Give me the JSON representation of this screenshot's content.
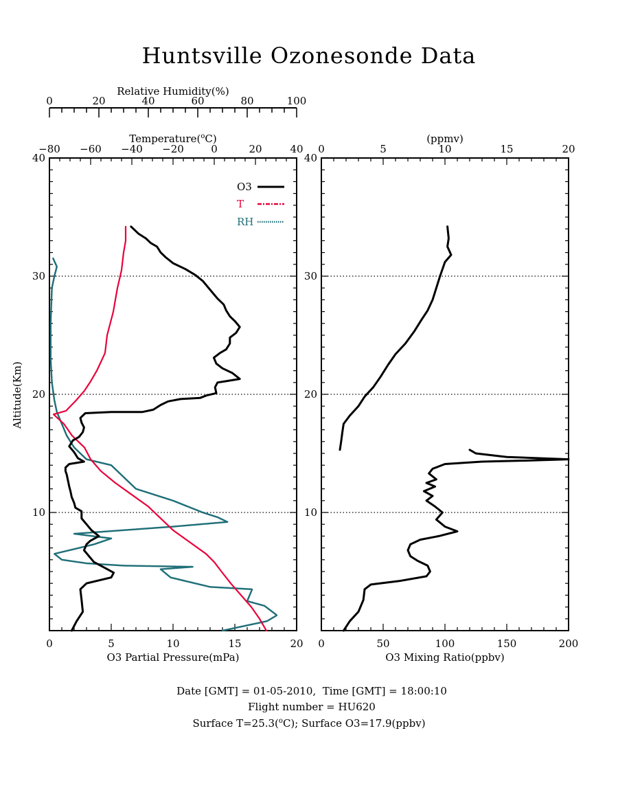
{
  "title": "Huntsville Ozonesonde Data",
  "left_panel": {
    "top_axis_rh": {
      "label": "Relative Humidity(%)",
      "ticks": [
        "0",
        "20",
        "40",
        "60",
        "80",
        "100"
      ],
      "range": [
        0,
        100
      ]
    },
    "top_axis_temp": {
      "label_prefix": "Temperature(",
      "label_sup": "o",
      "label_suffix": "C)",
      "ticks": [
        "-80",
        "-60",
        "-40",
        "-20",
        "0",
        "20",
        "40"
      ],
      "range": [
        -80,
        40
      ]
    },
    "bottom_axis": {
      "label": "O3 Partial Pressure(mPa)",
      "ticks": [
        "0",
        "5",
        "10",
        "15",
        "20"
      ],
      "range": [
        0,
        20
      ]
    },
    "y_axis": {
      "label": "Altitude(Km)",
      "ticks": [
        "10",
        "20",
        "30",
        "40"
      ],
      "range": [
        0,
        40
      ]
    },
    "legend": [
      "O3",
      "T",
      "RH"
    ]
  },
  "right_panel": {
    "top_axis": {
      "label": "(ppmv)",
      "ticks": [
        "0",
        "5",
        "10",
        "15",
        "20"
      ],
      "range": [
        0,
        20
      ]
    },
    "bottom_axis": {
      "label": "O3 Mixing Ratio(ppbv)",
      "ticks": [
        "0",
        "50",
        "100",
        "150",
        "200"
      ],
      "range": [
        0,
        200
      ]
    },
    "y_axis": {
      "ticks": [
        "10",
        "20",
        "30",
        "40"
      ],
      "range": [
        0,
        40
      ]
    }
  },
  "footer": {
    "line1": "Date [GMT] = 01-05-2010,  Time [GMT] = 18:00:10",
    "line2": "Flight number = HU620",
    "line3_prefix": "Surface T=25.3(",
    "line3_sup": "o",
    "line3_suffix": "C); Surface O3=17.9(ppbv)"
  },
  "colors": {
    "O3": "#000000",
    "T": "#e8003a",
    "RH": "#1f6f78"
  },
  "chart_data": [
    {
      "type": "line",
      "panel": "left",
      "title": "",
      "ylabel": "Altitude(Km)",
      "ylim": [
        0,
        40
      ],
      "grid_y": [
        10,
        20,
        30
      ],
      "legend_position": "top-right",
      "series": [
        {
          "name": "O3",
          "xlabel": "O3 Partial Pressure(mPa)",
          "xlim": [
            0,
            20
          ],
          "points": [
            [
              1.8,
              0
            ],
            [
              2.2,
              0.8
            ],
            [
              2.7,
              1.6
            ],
            [
              2.6,
              2.6
            ],
            [
              2.5,
              3.5
            ],
            [
              3.0,
              4.0
            ],
            [
              5.0,
              4.5
            ],
            [
              5.2,
              4.9
            ],
            [
              4.5,
              5.3
            ],
            [
              3.6,
              5.8
            ],
            [
              3.2,
              6.3
            ],
            [
              2.8,
              6.8
            ],
            [
              3.0,
              7.3
            ],
            [
              3.3,
              7.6
            ],
            [
              4.0,
              8.0
            ],
            [
              3.4,
              8.5
            ],
            [
              3.0,
              9.0
            ],
            [
              2.6,
              9.5
            ],
            [
              2.6,
              10.1
            ],
            [
              2.1,
              10.4
            ],
            [
              2.0,
              10.8
            ],
            [
              1.8,
              11.3
            ],
            [
              1.7,
              11.8
            ],
            [
              1.6,
              12.2
            ],
            [
              1.5,
              12.7
            ],
            [
              1.4,
              13.2
            ],
            [
              1.3,
              13.5
            ],
            [
              1.3,
              13.8
            ],
            [
              1.6,
              14.1
            ],
            [
              2.8,
              14.3
            ],
            [
              2.3,
              14.6
            ],
            [
              2.0,
              15.1
            ],
            [
              1.6,
              15.6
            ],
            [
              1.9,
              16.1
            ],
            [
              2.4,
              16.4
            ],
            [
              2.7,
              16.8
            ],
            [
              2.8,
              17.2
            ],
            [
              2.6,
              17.6
            ],
            [
              2.5,
              18.0
            ],
            [
              2.9,
              18.4
            ],
            [
              5.0,
              18.5
            ],
            [
              7.5,
              18.5
            ],
            [
              8.4,
              18.7
            ],
            [
              9.0,
              19.1
            ],
            [
              9.6,
              19.4
            ],
            [
              10.6,
              19.6
            ],
            [
              12.2,
              19.7
            ],
            [
              12.7,
              19.9
            ],
            [
              13.5,
              20.1
            ],
            [
              13.4,
              20.6
            ],
            [
              13.6,
              21.0
            ],
            [
              14.2,
              21.1
            ],
            [
              15.4,
              21.3
            ],
            [
              14.8,
              21.8
            ],
            [
              14.0,
              22.2
            ],
            [
              13.5,
              22.6
            ],
            [
              13.3,
              23.1
            ],
            [
              13.8,
              23.5
            ],
            [
              14.3,
              23.8
            ],
            [
              14.6,
              24.3
            ],
            [
              14.6,
              24.8
            ],
            [
              15.1,
              25.2
            ],
            [
              15.4,
              25.7
            ],
            [
              15.0,
              26.2
            ],
            [
              14.6,
              26.6
            ],
            [
              14.3,
              27.1
            ],
            [
              14.1,
              27.6
            ],
            [
              13.6,
              28.1
            ],
            [
              13.2,
              28.6
            ],
            [
              12.8,
              29.1
            ],
            [
              12.4,
              29.6
            ],
            [
              11.8,
              30.1
            ],
            [
              11.0,
              30.6
            ],
            [
              10.0,
              31.1
            ],
            [
              9.4,
              31.6
            ],
            [
              9.0,
              32.0
            ],
            [
              8.7,
              32.5
            ],
            [
              8.2,
              32.8
            ],
            [
              7.8,
              33.2
            ],
            [
              7.2,
              33.6
            ],
            [
              6.6,
              34.2
            ]
          ]
        },
        {
          "name": "T",
          "xlabel": "Temperature(oC)",
          "xlim": [
            -80,
            40
          ],
          "points": [
            [
              25.3,
              0
            ],
            [
              22,
              1
            ],
            [
              18,
              2
            ],
            [
              13,
              3
            ],
            [
              8,
              4
            ],
            [
              3.5,
              5
            ],
            [
              0,
              5.8
            ],
            [
              -4,
              6.5
            ],
            [
              -12,
              7.5
            ],
            [
              -20,
              8.5
            ],
            [
              -26,
              9.5
            ],
            [
              -32,
              10.5
            ],
            [
              -40,
              11.5
            ],
            [
              -48,
              12.5
            ],
            [
              -55,
              13.5
            ],
            [
              -60,
              14.5
            ],
            [
              -63,
              15.5
            ],
            [
              -69,
              16.5
            ],
            [
              -73,
              17.5
            ],
            [
              -78,
              18.3
            ],
            [
              -72,
              18.6
            ],
            [
              -67,
              19.5
            ],
            [
              -63,
              20.3
            ],
            [
              -60,
              21.1
            ],
            [
              -57,
              22.0
            ],
            [
              -53,
              23.5
            ],
            [
              -52,
              25.0
            ],
            [
              -49,
              27.0
            ],
            [
              -47,
              29.0
            ],
            [
              -45,
              30.5
            ],
            [
              -44,
              32.0
            ],
            [
              -43,
              33.0
            ],
            [
              -43,
              34.2
            ]
          ]
        },
        {
          "name": "RH",
          "xlabel": "Relative Humidity(%)",
          "xlim": [
            0,
            100
          ],
          "points": [
            [
              70,
              0
            ],
            [
              88,
              0.8
            ],
            [
              92,
              1.3
            ],
            [
              87,
              2.1
            ],
            [
              80,
              2.5
            ],
            [
              82,
              3.5
            ],
            [
              65,
              3.7
            ],
            [
              55,
              4.2
            ],
            [
              49,
              4.5
            ],
            [
              45,
              5.2
            ],
            [
              58,
              5.4
            ],
            [
              30,
              5.5
            ],
            [
              15,
              5.7
            ],
            [
              5,
              6.0
            ],
            [
              2,
              6.5
            ],
            [
              12,
              7.0
            ],
            [
              18,
              7.3
            ],
            [
              25,
              7.8
            ],
            [
              10,
              8.2
            ],
            [
              30,
              8.5
            ],
            [
              50,
              8.8
            ],
            [
              72,
              9.2
            ],
            [
              68,
              9.6
            ],
            [
              62,
              10.0
            ],
            [
              50,
              11.0
            ],
            [
              35,
              12.0
            ],
            [
              30,
              13.0
            ],
            [
              25,
              14.0
            ],
            [
              15,
              14.5
            ],
            [
              10,
              15.5
            ],
            [
              7,
              16.5
            ],
            [
              5,
              17.5
            ],
            [
              3,
              18.5
            ],
            [
              2,
              19.5
            ],
            [
              1,
              21
            ],
            [
              0.5,
              23
            ],
            [
              0.5,
              26
            ],
            [
              1,
              29
            ],
            [
              2,
              30
            ],
            [
              3,
              30.8
            ],
            [
              1.5,
              31.5
            ]
          ]
        }
      ]
    },
    {
      "type": "line",
      "panel": "right",
      "title": "",
      "xlabel": "O3 Mixing Ratio(ppbv)",
      "xlim": [
        0,
        200
      ],
      "ylim": [
        0,
        40
      ],
      "grid_y": [
        10,
        20,
        30
      ],
      "series": [
        {
          "name": "",
          "points": [
            [
              18,
              0
            ],
            [
              23,
              0.8
            ],
            [
              30,
              1.6
            ],
            [
              34,
              2.6
            ],
            [
              35,
              3.5
            ],
            [
              40,
              3.9
            ],
            [
              63,
              4.2
            ],
            [
              85,
              4.6
            ],
            [
              88,
              5.0
            ],
            [
              86,
              5.5
            ],
            [
              78,
              5.9
            ],
            [
              72,
              6.3
            ],
            [
              70,
              6.8
            ],
            [
              72,
              7.3
            ],
            [
              80,
              7.7
            ],
            [
              95,
              8.0
            ],
            [
              110,
              8.4
            ],
            [
              100,
              8.8
            ],
            [
              93,
              9.4
            ],
            [
              98,
              10.0
            ],
            [
              92,
              10.5
            ],
            [
              85,
              11.0
            ],
            [
              90,
              11.4
            ],
            [
              83,
              11.8
            ],
            [
              92,
              12.2
            ],
            [
              85,
              12.5
            ],
            [
              93,
              12.8
            ],
            [
              87,
              13.3
            ],
            [
              90,
              13.7
            ],
            [
              100,
              14.1
            ],
            [
              130,
              14.3
            ],
            [
              170,
              14.4
            ],
            [
              200,
              14.5
            ],
            [
              150,
              14.7
            ],
            [
              125,
              15.0
            ],
            [
              120,
              15.3
            ]
          ]
        },
        {
          "name": "",
          "points": [
            [
              1.5,
              15.3
            ],
            [
              1.6,
              16.0
            ],
            [
              1.7,
              16.8
            ],
            [
              1.8,
              17.5
            ],
            [
              2.3,
              18.2
            ],
            [
              3.0,
              19.0
            ],
            [
              3.5,
              19.8
            ],
            [
              4.2,
              20.6
            ],
            [
              4.8,
              21.5
            ],
            [
              5.4,
              22.5
            ],
            [
              6.0,
              23.4
            ],
            [
              6.8,
              24.3
            ],
            [
              7.5,
              25.3
            ],
            [
              8.1,
              26.3
            ],
            [
              8.6,
              27.1
            ],
            [
              9.0,
              28.0
            ],
            [
              9.3,
              29.0
            ],
            [
              9.6,
              30.0
            ],
            [
              9.8,
              30.6
            ],
            [
              10.0,
              31.2
            ],
            [
              10.5,
              31.8
            ],
            [
              10.2,
              32.5
            ],
            [
              10.3,
              33.2
            ],
            [
              10.2,
              34.2
            ]
          ]
        }
      ]
    }
  ]
}
